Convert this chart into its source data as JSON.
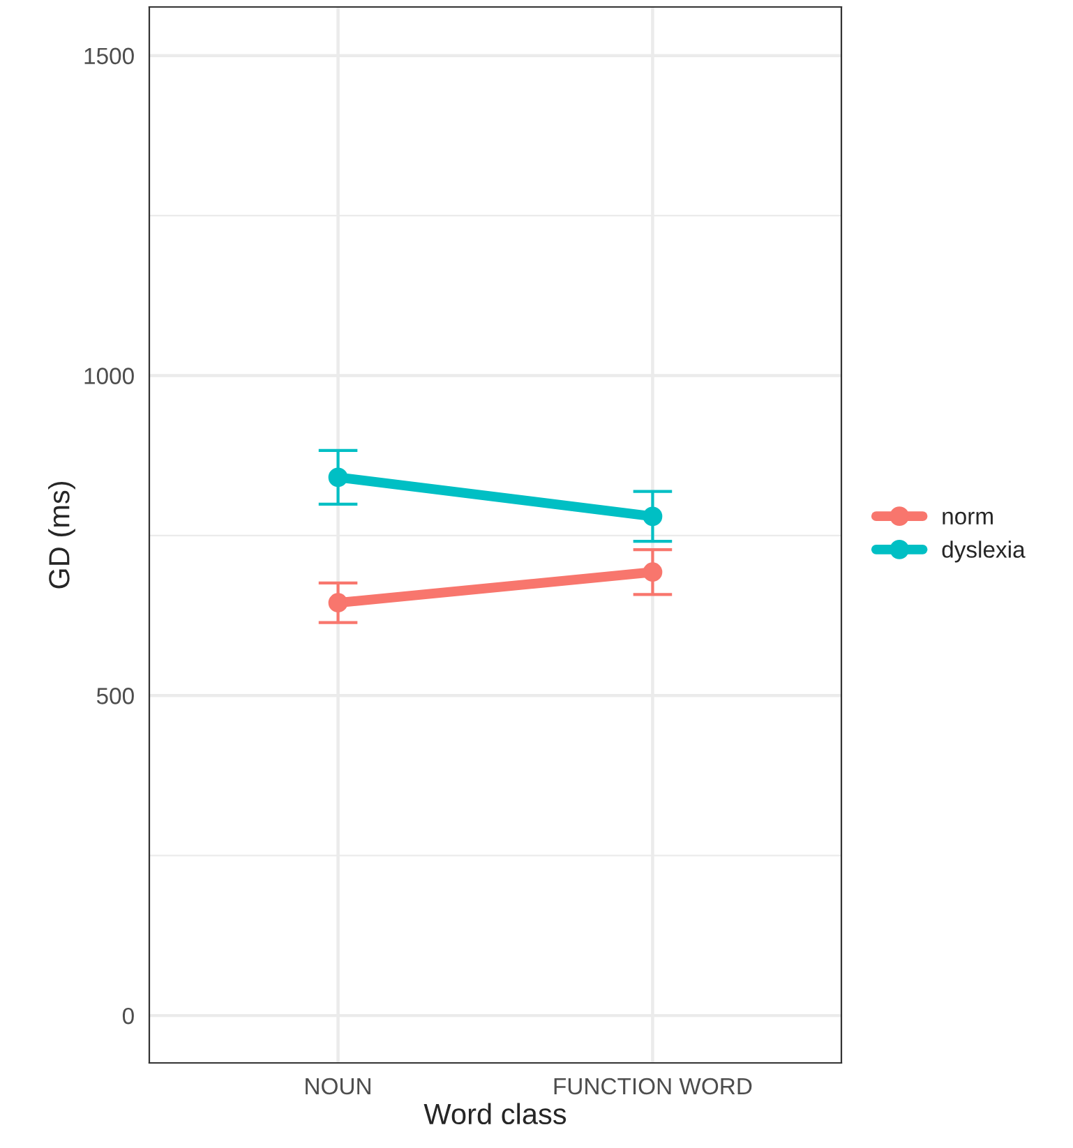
{
  "chart_data": {
    "type": "line",
    "xlabel": "Word class",
    "ylabel": "GD (ms)",
    "categories": [
      "NOUN",
      "FUNCTION WORD"
    ],
    "series": [
      {
        "name": "norm",
        "color": "#f8766d",
        "values": [
          645,
          693
        ],
        "errors": [
          31,
          35
        ]
      },
      {
        "name": "dyslexia",
        "color": "#00bfc4",
        "values": [
          841,
          780
        ],
        "errors": [
          42,
          39
        ]
      }
    ],
    "ylim": [
      -74,
      1576
    ],
    "yticks": [
      0,
      {
        "value": 250,
        "label": null
      },
      500,
      {
        "value": 750,
        "label": null
      },
      1000,
      {
        "value": 1250,
        "label": null
      },
      1500
    ],
    "grid": true,
    "legend": "right",
    "marker": "circle",
    "line_style": "solid"
  }
}
